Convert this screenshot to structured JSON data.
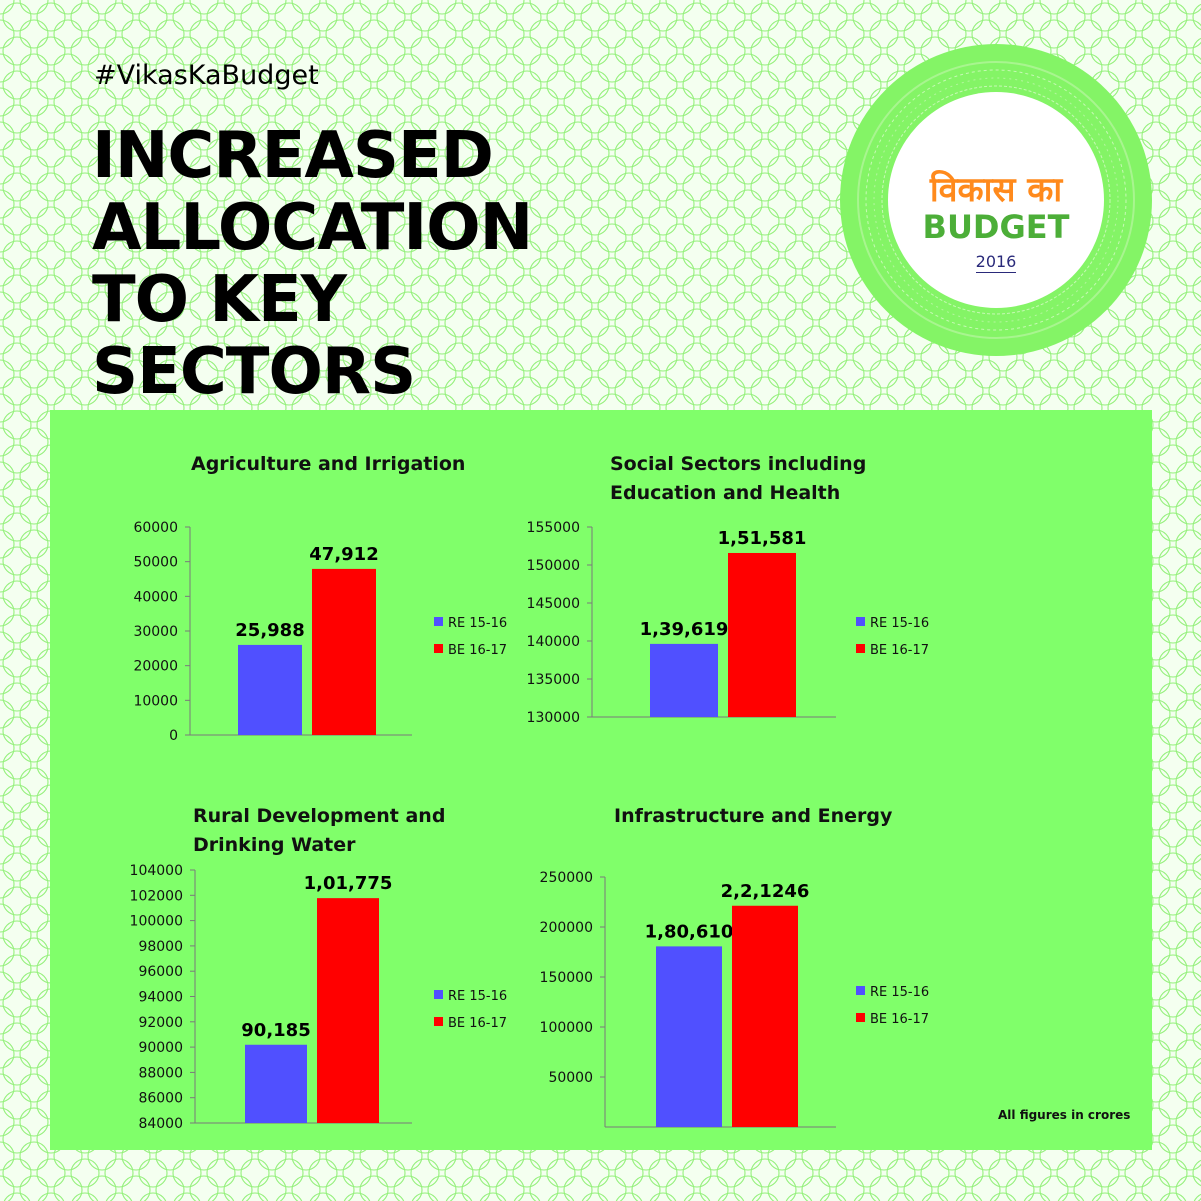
{
  "hashtag": "#VikasKaBudget",
  "headline": [
    "INCREASED",
    "ALLOCATION",
    "TO KEY",
    "SECTORS"
  ],
  "badge": {
    "line1": "विकास का",
    "line2": "BUDGET",
    "year": "2016"
  },
  "footnote": "All figures in crores",
  "colors": {
    "panel": "#80ff6a",
    "re_series": "#5050ff",
    "be_series": "#ff0000",
    "badge_ring": "#84f466",
    "badge_text_orange": "#ff8a1c",
    "badge_text_green": "#4cae38"
  },
  "chart_data": [
    {
      "type": "bar",
      "title": [
        "Agriculture and Irrigation"
      ],
      "categories": [
        "RE 15-16",
        "BE 16-17"
      ],
      "values": [
        25988,
        47912
      ],
      "data_labels": [
        "25,988",
        "47,912"
      ],
      "yticks": [
        0,
        10000,
        20000,
        30000,
        40000,
        50000,
        60000
      ],
      "ylim": [
        0,
        60000
      ],
      "legend": [
        "RE 15-16",
        "BE 16-17"
      ],
      "legend_position": "right"
    },
    {
      "type": "bar",
      "title": [
        "Social Sectors including",
        "Education and Health"
      ],
      "categories": [
        "RE 15-16",
        "BE 16-17"
      ],
      "values": [
        139619,
        151581
      ],
      "data_labels": [
        "1,39,619",
        "1,51,581"
      ],
      "yticks": [
        130000,
        135000,
        140000,
        145000,
        150000,
        155000
      ],
      "ylim": [
        130000,
        155000
      ],
      "legend": [
        "RE 15-16",
        "BE 16-17"
      ],
      "legend_position": "right"
    },
    {
      "type": "bar",
      "title": [
        "Rural Development and",
        "Drinking Water"
      ],
      "categories": [
        "RE 15-16",
        "BE 16-17"
      ],
      "values": [
        90185,
        101775
      ],
      "data_labels": [
        "90,185",
        "1,01,775"
      ],
      "yticks": [
        84000,
        86000,
        88000,
        90000,
        92000,
        94000,
        96000,
        98000,
        100000,
        102000,
        104000
      ],
      "ylim": [
        84000,
        104000
      ],
      "legend": [
        "RE 15-16",
        "BE 16-17"
      ],
      "legend_position": "right"
    },
    {
      "type": "bar",
      "title": [
        "Infrastructure and Energy"
      ],
      "categories": [
        "RE 15-16",
        "BE 16-17"
      ],
      "values": [
        180610,
        221246
      ],
      "data_labels": [
        "1,80,610",
        "2,2,1246"
      ],
      "yticks": [
        50000,
        100000,
        150000,
        200000,
        250000
      ],
      "ylim": [
        0,
        250000
      ],
      "legend": [
        "RE 15-16",
        "BE 16-17"
      ],
      "legend_position": "right"
    }
  ]
}
